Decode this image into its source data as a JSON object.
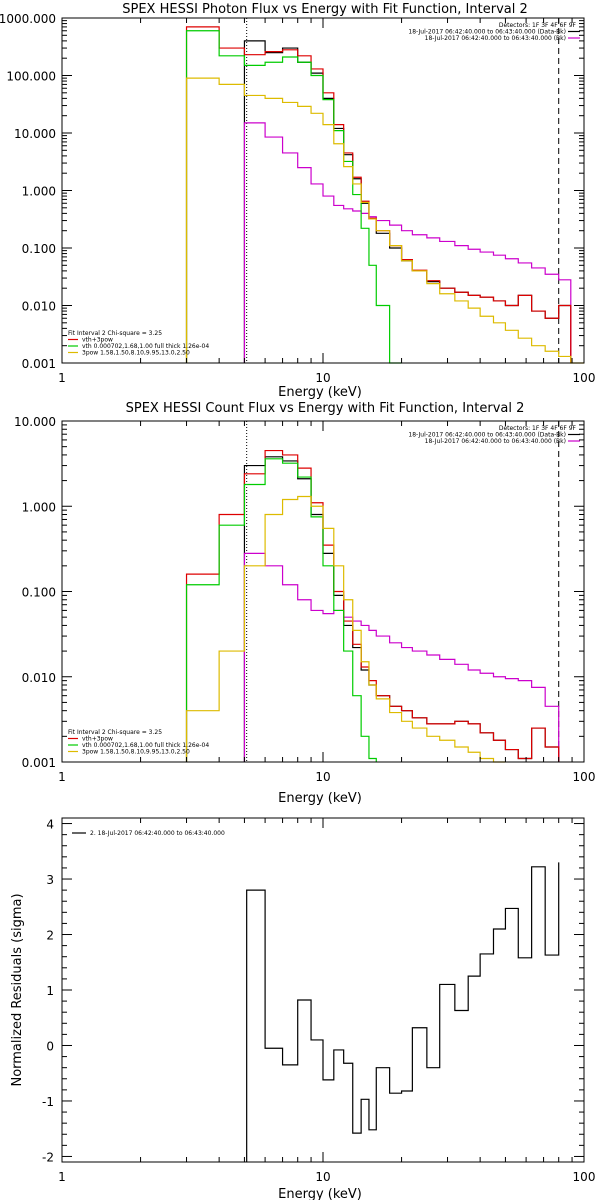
{
  "chart_data": [
    {
      "type": "line",
      "title": "SPEX HESSI Photon Flux vs Energy with Fit Function, Interval 2",
      "xlabel": "Energy (keV)",
      "ylabel": "",
      "xscale": "log",
      "yscale": "log",
      "xlim": [
        1,
        100
      ],
      "ylim": [
        0.001,
        1000
      ],
      "x_ticks": [
        "1",
        "10",
        "100"
      ],
      "y_ticks": [
        "0.001",
        "0.010",
        "0.100",
        "1.000",
        "10.000",
        "100.000",
        "1000.000"
      ],
      "edges": [
        3,
        4,
        5,
        6,
        7,
        8,
        9,
        10,
        11,
        12,
        13,
        14,
        15,
        16,
        18,
        20,
        22,
        25,
        28,
        32,
        36,
        40,
        45,
        50,
        56,
        63,
        71,
        80,
        89,
        100
      ],
      "markers": {
        "dotted_x": 5.1,
        "dashed_x": 80
      },
      "legend_top": {
        "placement": "top-right",
        "header": "Detectors: 1F 3F 4F 6F 9F",
        "entries": [
          {
            "text": "18-Jul-2017 06:42:40.000 to 06:43:40.000 (Data-Bk)",
            "color": "#000000"
          },
          {
            "text": "18-Jul-2017 06:42:40.000 to 06:43:40.000 (Bk)",
            "color": "#cc00cc"
          }
        ]
      },
      "legend_bottom": {
        "placement": "bottom-left",
        "header": "Fit Interval 2   Chi-square = 3.25",
        "entries": [
          {
            "text": "vth+3pow",
            "color": "#dd0000"
          },
          {
            "text": "vth 0.000702,1.68,1.00  full thick 1.26e-04",
            "color": "#00cc00"
          },
          {
            "text": "3pow 1.58,1.50,8.10,9.95,13.0,2.50",
            "color": "#ddbb00"
          }
        ]
      },
      "series": [
        {
          "color": "#000000",
          "values": [
            null,
            null,
            400,
            250,
            300,
            170,
            110,
            40,
            12,
            4.2,
            1.6,
            0.6,
            0.32,
            0.18,
            0.1,
            0.06,
            0.04,
            0.026,
            0.02,
            0.017,
            0.015,
            0.014,
            0.012,
            0.01,
            0.015,
            0.008,
            0.006,
            0.01,
            null
          ]
        },
        {
          "color": "#cc00cc",
          "values": [
            null,
            null,
            15,
            8.5,
            4.5,
            2.5,
            1.3,
            0.8,
            0.55,
            0.48,
            0.44,
            0.4,
            0.35,
            0.3,
            0.25,
            0.2,
            0.17,
            0.15,
            0.13,
            0.11,
            0.095,
            0.085,
            0.075,
            0.065,
            0.055,
            0.045,
            0.035,
            0.028,
            null
          ]
        },
        {
          "color": "#dd0000",
          "values": [
            700,
            300,
            230,
            260,
            280,
            220,
            130,
            50,
            14,
            4.5,
            1.7,
            0.65,
            0.33,
            0.2,
            0.11,
            0.063,
            0.041,
            0.027,
            0.02,
            0.017,
            0.015,
            0.014,
            0.012,
            0.01,
            0.015,
            0.008,
            0.006,
            0.01,
            null
          ]
        },
        {
          "color": "#00cc00",
          "values": [
            600,
            220,
            150,
            170,
            210,
            170,
            100,
            38,
            11,
            3.2,
            0.85,
            0.22,
            0.05,
            0.01,
            0.001,
            null,
            null,
            null,
            null,
            null,
            null,
            null,
            null,
            null,
            null,
            null,
            null,
            null,
            null
          ]
        },
        {
          "color": "#ddbb00",
          "values": [
            90,
            70,
            45,
            40,
            34,
            29,
            22,
            14,
            6.5,
            2.6,
            1.3,
            0.62,
            0.32,
            0.2,
            0.11,
            0.06,
            0.04,
            0.024,
            0.016,
            0.012,
            0.009,
            0.0065,
            0.005,
            0.0037,
            0.0027,
            0.002,
            0.0016,
            0.0013,
            0.001
          ]
        }
      ]
    },
    {
      "type": "line",
      "title": "SPEX HESSI Count Flux vs Energy with Fit Function, Interval 2",
      "xlabel": "Energy (keV)",
      "ylabel": "",
      "xscale": "log",
      "yscale": "log",
      "xlim": [
        1,
        100
      ],
      "ylim": [
        0.001,
        10
      ],
      "x_ticks": [
        "1",
        "10",
        "100"
      ],
      "y_ticks": [
        "0.001",
        "0.010",
        "0.100",
        "1.000",
        "10.000"
      ],
      "edges": [
        3,
        4,
        5,
        6,
        7,
        8,
        9,
        10,
        11,
        12,
        13,
        14,
        15,
        16,
        18,
        20,
        22,
        25,
        28,
        32,
        36,
        40,
        45,
        50,
        56,
        63,
        71,
        80
      ],
      "markers": {
        "dotted_x": 5.1,
        "dashed_x": 80
      },
      "legend_top": {
        "placement": "top-right",
        "header": "Detectors: 1F 3F 4F 6F 9F",
        "entries": [
          {
            "text": "18-Jul-2017 06:42:40.000 to 06:43:40.000 (Data-Bk)",
            "color": "#000000"
          },
          {
            "text": "18-Jul-2017 06:42:40.000 to 06:43:40.000 (Bk)",
            "color": "#cc00cc"
          }
        ]
      },
      "legend_bottom": {
        "placement": "bottom-left",
        "header": "Fit Interval 2   Chi-square = 3.25",
        "entries": [
          {
            "text": "vth+3pow",
            "color": "#dd0000"
          },
          {
            "text": "vth 0.000702,1.68,1.00  full thick 1.26e-04",
            "color": "#00cc00"
          },
          {
            "text": "3pow 1.58,1.50,8.10,9.95,13.0,2.50",
            "color": "#ddbb00"
          }
        ]
      },
      "series": [
        {
          "color": "#000000",
          "values": [
            null,
            null,
            3.0,
            3.8,
            3.4,
            2.1,
            0.8,
            0.28,
            0.09,
            0.04,
            0.022,
            0.012,
            0.008,
            0.006,
            0.0045,
            0.004,
            0.0033,
            0.0028,
            0.0028,
            0.003,
            0.0028,
            0.0022,
            0.0018,
            0.0014,
            0.0011,
            0.0025,
            0.0015
          ]
        },
        {
          "color": "#cc00cc",
          "values": [
            null,
            null,
            0.28,
            0.2,
            0.12,
            0.08,
            0.06,
            0.055,
            0.06,
            0.05,
            0.045,
            0.04,
            0.035,
            0.03,
            0.025,
            0.022,
            0.02,
            0.018,
            0.016,
            0.014,
            0.012,
            0.011,
            0.01,
            0.0095,
            0.009,
            0.0075,
            0.0045
          ]
        },
        {
          "color": "#dd0000",
          "values": [
            0.16,
            0.8,
            2.4,
            4.5,
            4.0,
            2.8,
            1.1,
            0.35,
            0.1,
            0.045,
            0.024,
            0.013,
            0.009,
            0.006,
            0.0045,
            0.004,
            0.0033,
            0.0028,
            0.0028,
            0.003,
            0.0028,
            0.0022,
            0.0018,
            0.0014,
            0.0011,
            0.0025,
            0.0015
          ]
        },
        {
          "color": "#00cc00",
          "values": [
            0.12,
            0.6,
            1.8,
            3.6,
            3.2,
            2.2,
            0.75,
            0.2,
            0.06,
            0.02,
            0.006,
            0.002,
            0.0011,
            null,
            null,
            null,
            null,
            null,
            null,
            null,
            null,
            null,
            null,
            null,
            null,
            null,
            null
          ]
        },
        {
          "color": "#ddbb00",
          "values": [
            0.004,
            0.02,
            0.2,
            0.8,
            1.2,
            1.3,
            1.0,
            0.55,
            0.2,
            0.08,
            0.035,
            0.015,
            0.008,
            0.0055,
            0.0038,
            0.003,
            0.0025,
            0.002,
            0.0018,
            0.0015,
            0.0013,
            0.0011,
            0.001,
            null,
            null,
            null,
            null
          ]
        }
      ]
    },
    {
      "type": "line",
      "title": "",
      "xlabel": "Energy (keV)",
      "ylabel": "Normalized Residuals (sigma)",
      "xscale": "log",
      "yscale": "linear",
      "xlim": [
        1,
        100
      ],
      "ylim": [
        -2.1,
        4.1
      ],
      "x_ticks": [
        "1",
        "10",
        "100"
      ],
      "y_ticks": [
        "-2",
        "-1",
        "0",
        "1",
        "2",
        "3",
        "4"
      ],
      "edges": [
        5.1,
        6,
        7,
        8,
        9,
        10,
        11,
        12,
        13,
        14,
        15,
        16,
        18,
        20,
        22,
        25,
        28,
        32,
        36,
        40,
        45,
        50,
        56,
        63,
        71,
        80
      ],
      "legend": {
        "placement": "top-left",
        "entries": [
          {
            "text": "2. 18-Jul-2017 06:42:40.000 to 06:43:40.000",
            "color": "#000000"
          }
        ]
      },
      "series": [
        {
          "color": "#000000",
          "values": [
            2.8,
            -0.05,
            -0.35,
            0.82,
            0.1,
            -0.62,
            -0.08,
            -0.32,
            -1.58,
            -0.97,
            -1.52,
            -0.4,
            -0.86,
            -0.82,
            0.32,
            -0.4,
            1.1,
            0.63,
            1.25,
            1.65,
            2.1,
            2.47,
            1.58,
            3.22,
            1.63,
            3.3
          ]
        }
      ]
    }
  ]
}
